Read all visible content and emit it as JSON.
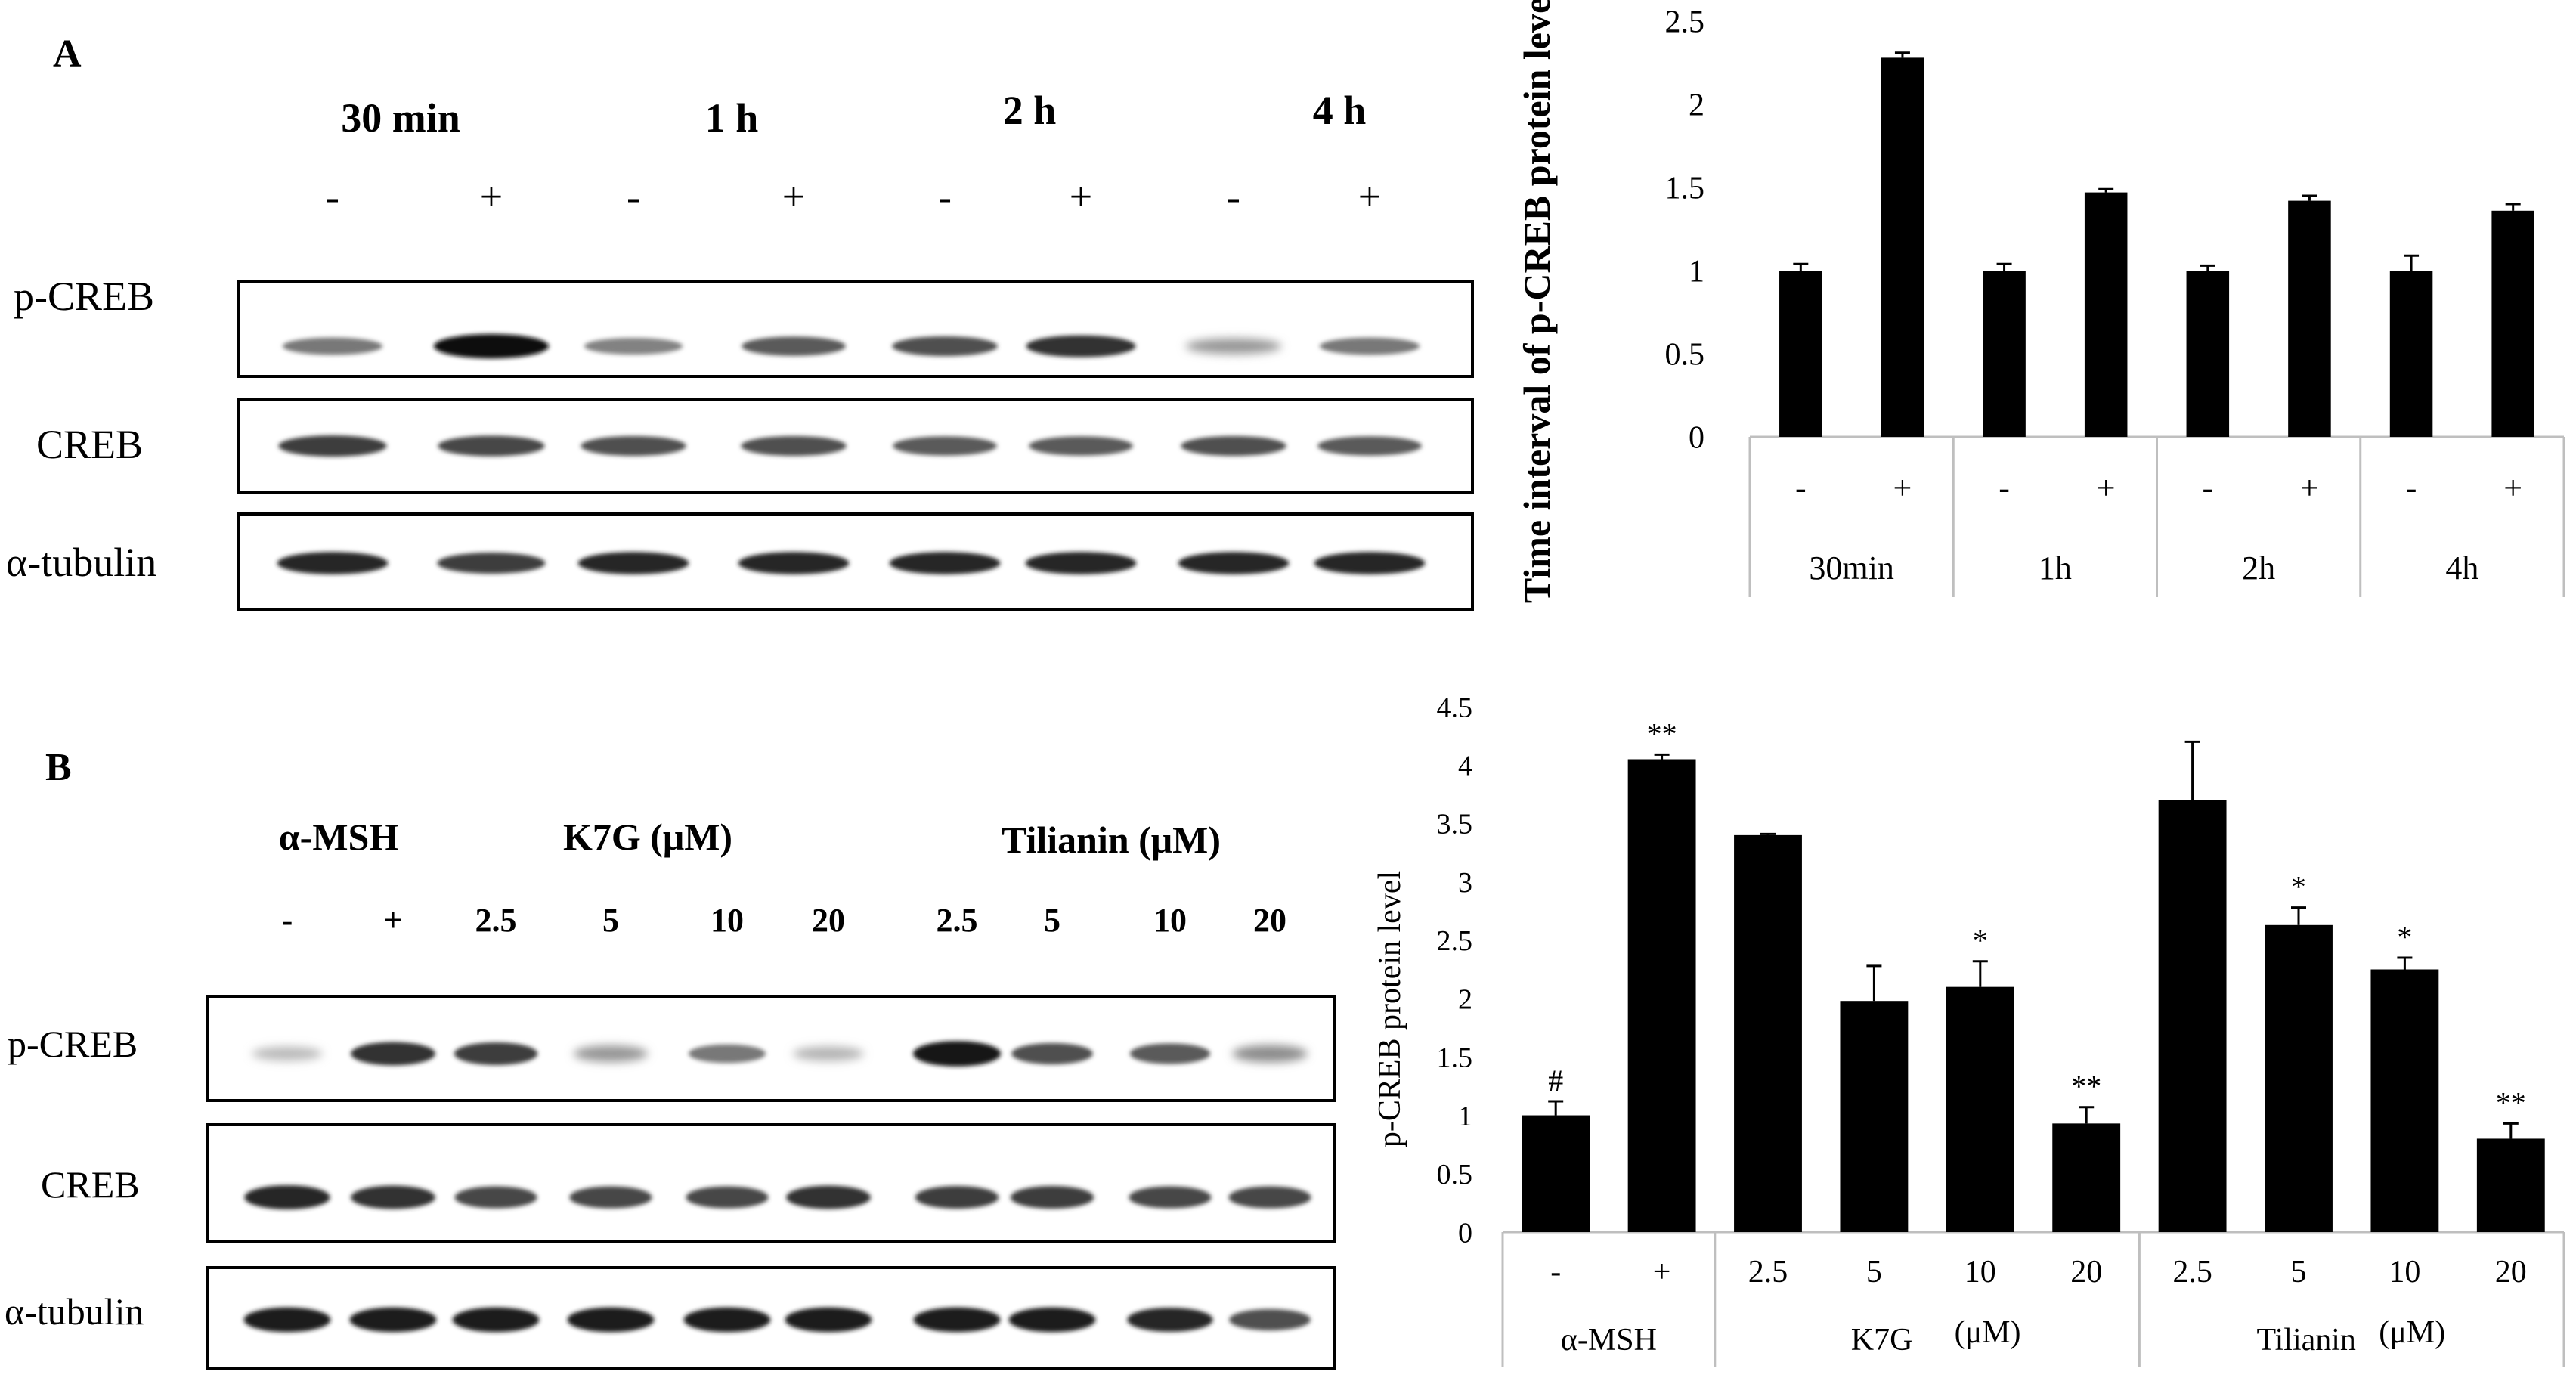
{
  "panel_a": {
    "label": "A",
    "blot": {
      "timepoints": [
        "30 min",
        "1 h",
        "2 h",
        "4 h"
      ],
      "lanes": [
        "-",
        "+",
        "-",
        "+",
        "-",
        "+",
        "-",
        "+"
      ],
      "rows": [
        {
          "label": "p-CREB",
          "intensity": [
            0.45,
            1.0,
            0.4,
            0.6,
            0.65,
            0.8,
            0.3,
            0.45
          ]
        },
        {
          "label": "CREB",
          "intensity": [
            0.75,
            0.7,
            0.65,
            0.65,
            0.6,
            0.6,
            0.65,
            0.6
          ]
        },
        {
          "label": "α-tubulin",
          "intensity": [
            0.85,
            0.75,
            0.85,
            0.85,
            0.85,
            0.85,
            0.85,
            0.85
          ]
        }
      ]
    }
  },
  "panel_b": {
    "label": "B",
    "blot": {
      "headers": {
        "msh": "α-MSH",
        "k7g": "K7G (μM)",
        "tilianin": "Tilianin (μM)"
      },
      "lanes": [
        "-",
        "+",
        "2.5",
        "5",
        "10",
        "20",
        "2.5",
        "5",
        "10",
        "20"
      ],
      "rows": [
        {
          "label": "p-CREB",
          "intensity": [
            0.12,
            0.8,
            0.75,
            0.3,
            0.45,
            0.15,
            0.95,
            0.65,
            0.6,
            0.35
          ]
        },
        {
          "label": "CREB",
          "intensity": [
            0.85,
            0.8,
            0.7,
            0.7,
            0.7,
            0.8,
            0.75,
            0.75,
            0.7,
            0.7
          ]
        },
        {
          "label": "α-tubulin",
          "intensity": [
            0.9,
            0.9,
            0.9,
            0.9,
            0.9,
            0.9,
            0.9,
            0.9,
            0.85,
            0.65
          ]
        }
      ]
    }
  },
  "chart_data": [
    {
      "type": "bar",
      "title": "",
      "xlabel": "",
      "ylabel": "Time interval of p-CREB protein level",
      "ylim": [
        0,
        2.5
      ],
      "yticks": [
        "0",
        "0.5",
        "1",
        "1.5",
        "2",
        "2.5"
      ],
      "categories": [
        "-",
        "+",
        "-",
        "+",
        "-",
        "+",
        "-",
        "+"
      ],
      "groups": [
        {
          "label": "30min",
          "span": 2
        },
        {
          "label": "1h",
          "span": 2
        },
        {
          "label": "2h",
          "span": 2
        },
        {
          "label": "4h",
          "span": 2
        }
      ],
      "values": [
        1.0,
        2.28,
        1.0,
        1.47,
        1.0,
        1.42,
        1.0,
        1.36
      ],
      "errors": [
        0.04,
        0.03,
        0.04,
        0.02,
        0.03,
        0.03,
        0.09,
        0.04
      ],
      "annotations": [
        "",
        "",
        "",
        "",
        "",
        "",
        "",
        ""
      ],
      "grid": false
    },
    {
      "type": "bar",
      "title": "",
      "xlabel": "",
      "ylabel": "p-CREB protein level",
      "ylim": [
        0,
        4.5
      ],
      "yticks": [
        "0",
        "0.5",
        "1",
        "1.5",
        "2",
        "2.5",
        "3",
        "3.5",
        "4",
        "4.5"
      ],
      "categories": [
        "-",
        "+",
        "2.5",
        "5",
        "10",
        "20",
        "2.5",
        "5",
        "10",
        "20"
      ],
      "groups": [
        {
          "label": "α-MSH",
          "span": 2
        },
        {
          "label": "K7G",
          "span": 4,
          "unit": "(μM)"
        },
        {
          "label": "Tilianin",
          "span": 4,
          "unit": "(μM)"
        }
      ],
      "values": [
        1.0,
        4.05,
        3.4,
        1.98,
        2.1,
        0.93,
        3.7,
        2.63,
        2.25,
        0.8
      ],
      "errors": [
        0.12,
        0.04,
        0.01,
        0.3,
        0.22,
        0.14,
        0.5,
        0.15,
        0.1,
        0.13
      ],
      "annotations": [
        "#",
        "**",
        "",
        "",
        "*",
        "**",
        "",
        "*",
        "*",
        "**"
      ],
      "grid": false
    }
  ]
}
